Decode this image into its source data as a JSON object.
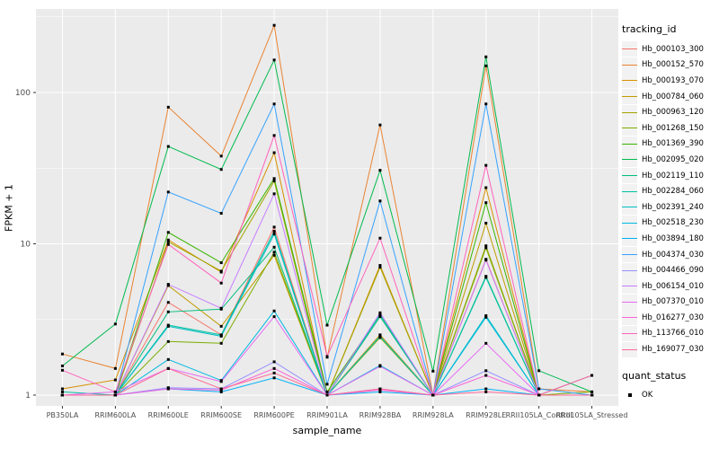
{
  "chart_data": {
    "type": "line",
    "title": "",
    "xlabel": "sample_name",
    "ylabel": "FPKM + 1",
    "y_scale": "log10",
    "y_ticks": [
      1,
      10,
      100
    ],
    "ylim": [
      0.95,
      320
    ],
    "grid": "on",
    "legend_position": "right",
    "categories": [
      "PB350LA",
      "RRIM600LA",
      "RRIM600LE",
      "RRIM600SE",
      "RRIM600PE",
      "RRIM901LA",
      "RRIM928BA",
      "RRIM928LA",
      "RRIM928LE",
      "RRII105LA_Control",
      "RRII105LA_Stressed"
    ],
    "series": [
      {
        "name": "Hb_000103_300",
        "color": "#F8766D",
        "values": [
          1.0,
          1.0,
          4.1,
          2.5,
          12.9,
          1.0,
          2.5,
          1.0,
          7.9,
          1.0,
          1.0
        ]
      },
      {
        "name": "Hb_000152_570",
        "color": "#EA8331",
        "values": [
          1.87,
          1.5,
          80,
          38,
          278,
          1.78,
          61,
          1.0,
          150,
          1.1,
          1.05
        ]
      },
      {
        "name": "Hb_000193_070",
        "color": "#D89000",
        "values": [
          1.1,
          1.26,
          10.6,
          6.5,
          40,
          1.0,
          7.2,
          1.0,
          23.5,
          1.0,
          1.0
        ]
      },
      {
        "name": "Hb_000784_060",
        "color": "#C09B00",
        "values": [
          1.0,
          1.0,
          5.3,
          2.85,
          8.4,
          1.0,
          2.5,
          1.0,
          13.7,
          1.0,
          1.0
        ]
      },
      {
        "name": "Hb_000963_120",
        "color": "#A3A500",
        "values": [
          1.0,
          1.0,
          10.3,
          6.6,
          26,
          1.0,
          7.0,
          1.0,
          9.7,
          1.0,
          1.0
        ]
      },
      {
        "name": "Hb_001268_150",
        "color": "#7CAE00",
        "values": [
          1.0,
          1.0,
          2.26,
          2.2,
          8.8,
          1.0,
          2.4,
          1.0,
          9.4,
          1.0,
          1.05
        ]
      },
      {
        "name": "Hb_001369_390",
        "color": "#39B600",
        "values": [
          1.0,
          1.0,
          11.9,
          7.5,
          27,
          1.05,
          3.4,
          1.0,
          18.7,
          1.0,
          1.35
        ]
      },
      {
        "name": "Hb_002095_020",
        "color": "#00BB4E",
        "values": [
          1.56,
          2.95,
          44,
          31,
          164,
          2.9,
          30.6,
          1.44,
          172,
          1.45,
          1.05
        ]
      },
      {
        "name": "Hb_002119_110",
        "color": "#00BF7D",
        "values": [
          1.0,
          1.0,
          3.55,
          3.7,
          9.5,
          1.0,
          3.3,
          1.0,
          6.1,
          1.0,
          1.0
        ]
      },
      {
        "name": "Hb_002284_060",
        "color": "#00C1A3",
        "values": [
          1.05,
          1.0,
          2.9,
          2.5,
          12.1,
          1.0,
          3.4,
          1.0,
          6.0,
          1.0,
          1.0
        ]
      },
      {
        "name": "Hb_002391_240",
        "color": "#00BFC4",
        "values": [
          1.0,
          1.0,
          2.85,
          2.45,
          11.6,
          1.0,
          2.45,
          1.0,
          3.35,
          1.0,
          1.0
        ]
      },
      {
        "name": "Hb_002518_230",
        "color": "#00BAE0",
        "values": [
          1.0,
          1.0,
          1.72,
          1.25,
          3.6,
          1.0,
          1.57,
          1.0,
          3.27,
          1.0,
          1.0
        ]
      },
      {
        "name": "Hb_003894_180",
        "color": "#00B0F6",
        "values": [
          1.0,
          1.0,
          1.1,
          1.05,
          1.3,
          1.0,
          1.05,
          1.0,
          1.1,
          1.0,
          1.0
        ]
      },
      {
        "name": "Hb_004374_030",
        "color": "#35A2FF",
        "values": [
          1.0,
          1.0,
          22,
          15.9,
          84,
          1.18,
          19.2,
          1.0,
          84,
          1.1,
          1.0
        ]
      },
      {
        "name": "Hb_004466_090",
        "color": "#9590FF",
        "values": [
          1.0,
          1.0,
          1.12,
          1.1,
          1.66,
          1.0,
          1.1,
          1.0,
          1.45,
          1.0,
          1.0
        ]
      },
      {
        "name": "Hb_006154_010",
        "color": "#C77CFF",
        "values": [
          1.0,
          1.0,
          5.4,
          3.75,
          21.4,
          1.0,
          3.5,
          1.0,
          7.8,
          1.0,
          1.0
        ]
      },
      {
        "name": "Hb_007370_010",
        "color": "#E76BF3",
        "values": [
          1.0,
          1.05,
          1.5,
          1.23,
          3.3,
          1.0,
          1.55,
          1.0,
          2.2,
          1.0,
          1.0
        ]
      },
      {
        "name": "Hb_016277_030",
        "color": "#FA62DB",
        "values": [
          1.0,
          1.0,
          1.1,
          1.08,
          1.5,
          1.0,
          1.08,
          1.0,
          1.35,
          1.0,
          1.0
        ]
      },
      {
        "name": "Hb_113766_010",
        "color": "#FF62BC",
        "values": [
          1.46,
          1.05,
          9.9,
          5.5,
          52,
          1.8,
          10.9,
          1.0,
          33,
          1.0,
          1.35
        ]
      },
      {
        "name": "Hb_169077_030",
        "color": "#FF6A98",
        "values": [
          1.0,
          1.0,
          1.5,
          1.1,
          1.4,
          1.0,
          1.1,
          1.0,
          1.05,
          1.0,
          1.0
        ]
      }
    ],
    "legend": {
      "color_title": "tracking_id",
      "shape_title": "quant_status",
      "shape_items": [
        {
          "label": "OK",
          "shape": "black-square"
        }
      ]
    },
    "point": {
      "shape": "square",
      "color": "#000000",
      "size": 3
    }
  },
  "panel": {
    "background": "#EBEBEB",
    "grid_major": "#FFFFFF",
    "grid_minor": "#FFFFFF",
    "tick_color": "#333333",
    "tick_label_color": "#4D4D4D",
    "legend_key_bg": "#F2F2F2"
  }
}
